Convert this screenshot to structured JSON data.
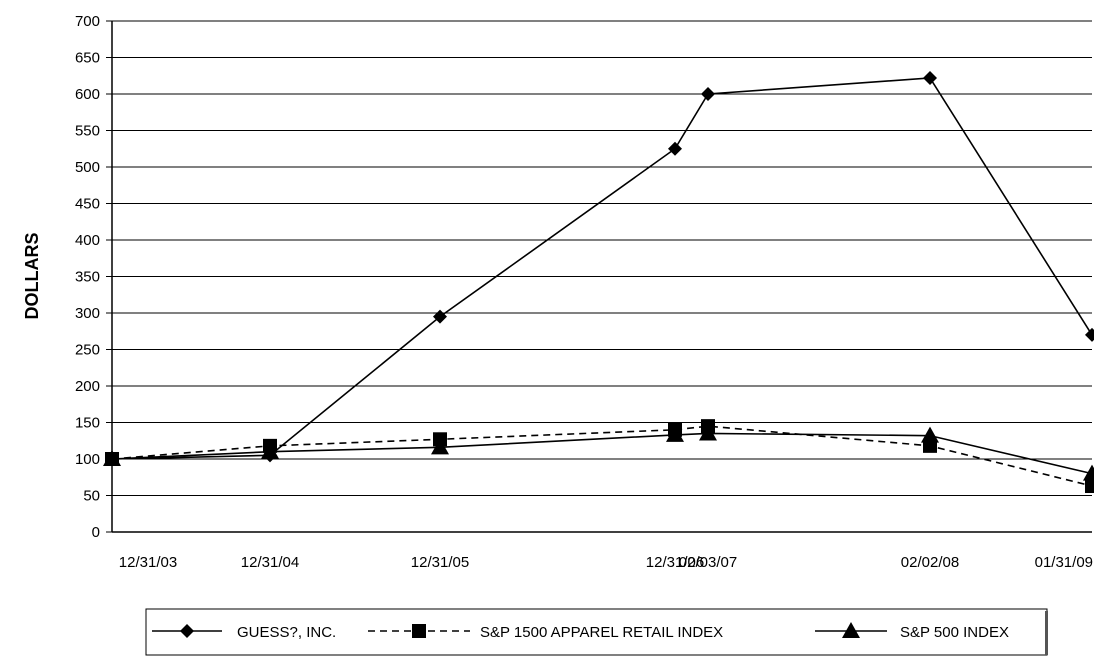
{
  "chart_data": {
    "type": "line",
    "title": "",
    "xlabel": "",
    "ylabel": "DOLLARS",
    "ylim": [
      0,
      700
    ],
    "y_ticks": [
      0,
      50,
      100,
      150,
      200,
      250,
      300,
      350,
      400,
      450,
      500,
      550,
      600,
      650,
      700
    ],
    "grid": true,
    "legend_position": "bottom",
    "x": [
      "12/31/03",
      "12/31/04",
      "12/31/05",
      "12/31/06",
      "02/03/07",
      "02/02/08",
      "01/31/09"
    ],
    "series": [
      {
        "name": "GUESS?, INC.",
        "marker": "diamond",
        "line_style": "solid",
        "color": "#000000",
        "values": [
          100,
          105,
          295,
          525,
          600,
          622,
          270
        ]
      },
      {
        "name": "S&P 1500 APPAREL RETAIL INDEX",
        "marker": "square",
        "line_style": "dashed",
        "color": "#000000",
        "values": [
          100,
          118,
          127,
          140,
          145,
          118,
          63
        ]
      },
      {
        "name": "S&P 500 INDEX",
        "marker": "triangle",
        "line_style": "solid",
        "color": "#000000",
        "values": [
          100,
          110,
          116,
          133,
          135,
          132,
          80
        ]
      }
    ]
  }
}
